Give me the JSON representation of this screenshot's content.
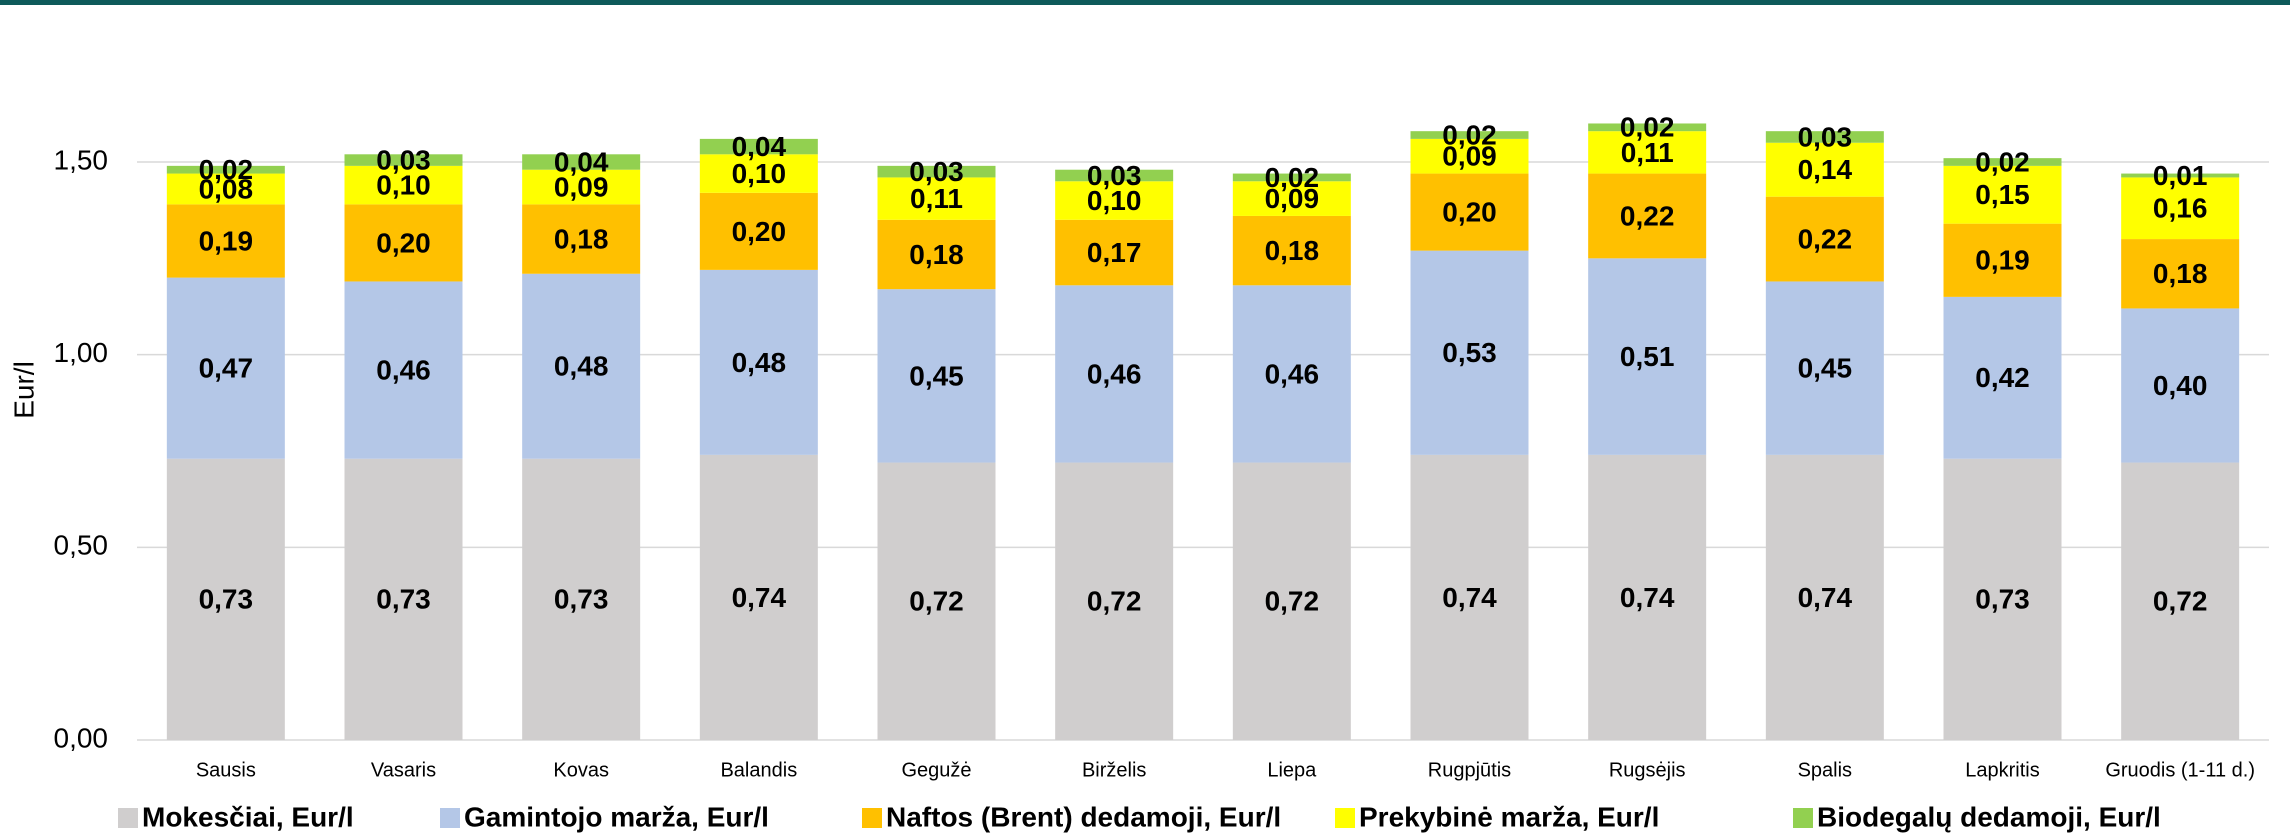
{
  "chart_data": {
    "type": "stacked_bar",
    "y_label": "Eur/l",
    "categories": [
      "Sausis",
      "Vasaris",
      "Kovas",
      "Balandis",
      "Gegužė",
      "Birželis",
      "Liepa",
      "Rugpjūtis",
      "Rugsėjis",
      "Spalis",
      "Lapkritis",
      "Gruodis (1-11 d.)"
    ],
    "series": [
      {
        "name": "Mokesčiai, Eur/l",
        "color": "#d0cece",
        "values": [
          0.73,
          0.73,
          0.73,
          0.74,
          0.72,
          0.72,
          0.72,
          0.74,
          0.74,
          0.74,
          0.73,
          0.72
        ],
        "value_labels": [
          "0,73",
          "0,73",
          "0,73",
          "0,74",
          "0,72",
          "0,72",
          "0,72",
          "0,74",
          "0,74",
          "0,74",
          "0,73",
          "0,72"
        ]
      },
      {
        "name": "Gamintojo marža, Eur/l",
        "color": "#b4c7e7",
        "values": [
          0.47,
          0.46,
          0.48,
          0.48,
          0.45,
          0.46,
          0.46,
          0.53,
          0.51,
          0.45,
          0.42,
          0.4
        ],
        "value_labels": [
          "0,47",
          "0,46",
          "0,48",
          "0,48",
          "0,45",
          "0,46",
          "0,46",
          "0,53",
          "0,51",
          "0,45",
          "0,42",
          "0,40"
        ]
      },
      {
        "name": "Naftos (Brent) dedamoji, Eur/l",
        "color": "#ffc000",
        "values": [
          0.19,
          0.2,
          0.18,
          0.2,
          0.18,
          0.17,
          0.18,
          0.2,
          0.22,
          0.22,
          0.19,
          0.18
        ],
        "value_labels": [
          "0,19",
          "0,20",
          "0,18",
          "0,20",
          "0,18",
          "0,17",
          "0,18",
          "0,20",
          "0,22",
          "0,22",
          "0,19",
          "0,18"
        ]
      },
      {
        "name": "Prekybinė marža, Eur/l",
        "color": "#ffff00",
        "values": [
          0.08,
          0.1,
          0.09,
          0.1,
          0.11,
          0.1,
          0.09,
          0.09,
          0.11,
          0.14,
          0.15,
          0.16
        ],
        "value_labels": [
          "0,08",
          "0,10",
          "0,09",
          "0,10",
          "0,11",
          "0,10",
          "0,09",
          "0,09",
          "0,11",
          "0,14",
          "0,15",
          "0,16"
        ]
      },
      {
        "name": "Biodegalų dedamoji, Eur/l",
        "color": "#92d050",
        "values": [
          0.02,
          0.03,
          0.04,
          0.04,
          0.03,
          0.03,
          0.02,
          0.02,
          0.02,
          0.03,
          0.02,
          0.01
        ],
        "value_labels": [
          "0,02",
          "0,03",
          "0,04",
          "0,04",
          "0,03",
          "0,03",
          "0,02",
          "0,02",
          "0,02",
          "0,03",
          "0,02",
          "0,01"
        ]
      }
    ],
    "ylim": [
      0,
      1.7
    ],
    "yticks": [
      {
        "value": 0,
        "label": "0,00"
      },
      {
        "value": 0.5,
        "label": "0,50"
      },
      {
        "value": 1,
        "label": "1,00"
      },
      {
        "value": 1.5,
        "label": "1,50"
      }
    ],
    "grid": true,
    "legend": "bottom"
  }
}
